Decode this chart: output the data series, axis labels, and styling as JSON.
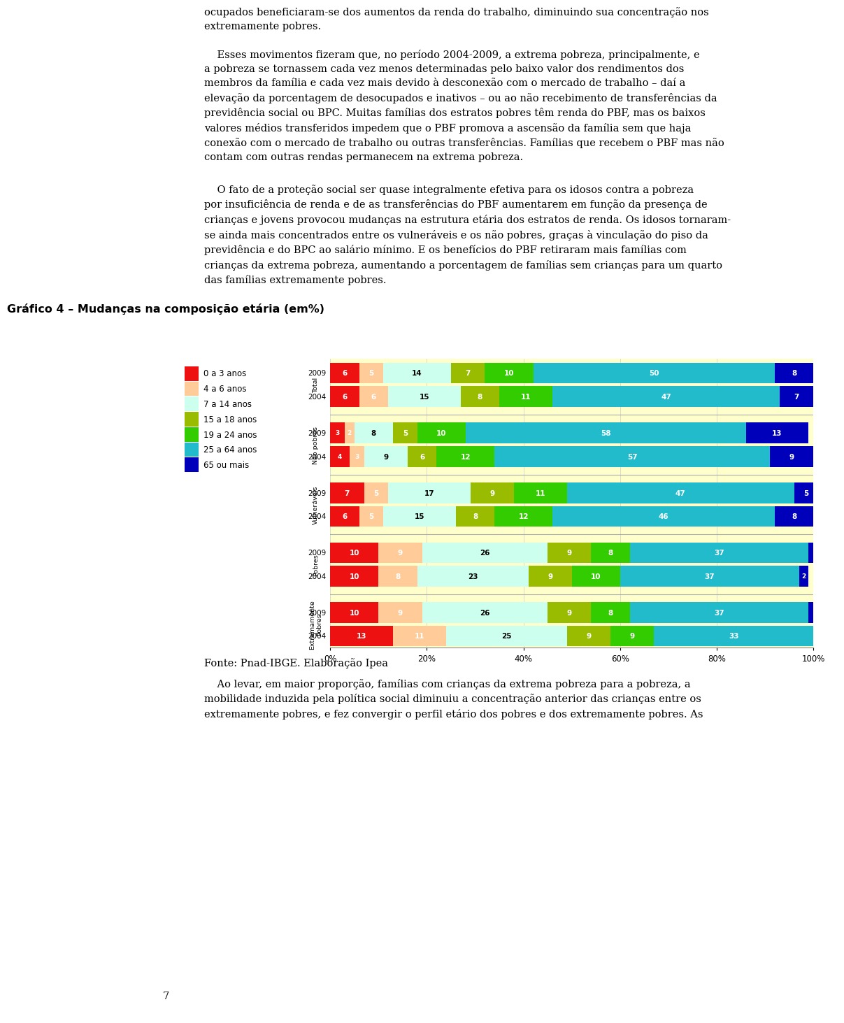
{
  "title": "Gráfico 4 – Mudanças na composição etária (em%)",
  "chart_bg": "#FFFFCC",
  "page_bg": "#FFFFFF",
  "categories": [
    "Total",
    "Não pobres",
    "Vulneráveis",
    "Pobres",
    "Extremamente\nPobres"
  ],
  "years": [
    "2009",
    "2004"
  ],
  "data": {
    "Total": {
      "2009": [
        6,
        5,
        14,
        7,
        10,
        50,
        8
      ],
      "2004": [
        6,
        6,
        15,
        8,
        11,
        47,
        7
      ]
    },
    "Não pobres": {
      "2009": [
        3,
        2,
        8,
        5,
        10,
        58,
        13
      ],
      "2004": [
        4,
        3,
        9,
        6,
        12,
        57,
        9
      ]
    },
    "Vulneráveis": {
      "2009": [
        7,
        5,
        17,
        9,
        11,
        47,
        5
      ],
      "2004": [
        6,
        5,
        15,
        8,
        12,
        46,
        8
      ]
    },
    "Pobres": {
      "2009": [
        10,
        9,
        26,
        9,
        8,
        37,
        1
      ],
      "2004": [
        10,
        8,
        23,
        9,
        10,
        37,
        2
      ]
    },
    "Extremamente\nPobres": {
      "2009": [
        10,
        9,
        26,
        9,
        8,
        37,
        1
      ],
      "2004": [
        13,
        11,
        25,
        9,
        9,
        33,
        1
      ]
    }
  },
  "segment_colors": [
    "#EE1111",
    "#FFCC99",
    "#CCFFEE",
    "#99BB00",
    "#33CC00",
    "#22BBCC",
    "#0000BB"
  ],
  "legend_labels": [
    "0 a 3 anos",
    "4 a 6 anos",
    "7 a 14 anos",
    "15 a 18 anos",
    "19 a 24 anos",
    "25 a 64 anos",
    "65 ou mais"
  ],
  "legend_colors": [
    "#EE1111",
    "#FFCC99",
    "#CCFFEE",
    "#99BB00",
    "#33CC00",
    "#22BBCC",
    "#0000BB"
  ],
  "text_color_light": "#FFFFFF",
  "text_color_dark": "#000000",
  "source_text": "Fonte: Pnad-IBGE. Elaboração Ipea"
}
